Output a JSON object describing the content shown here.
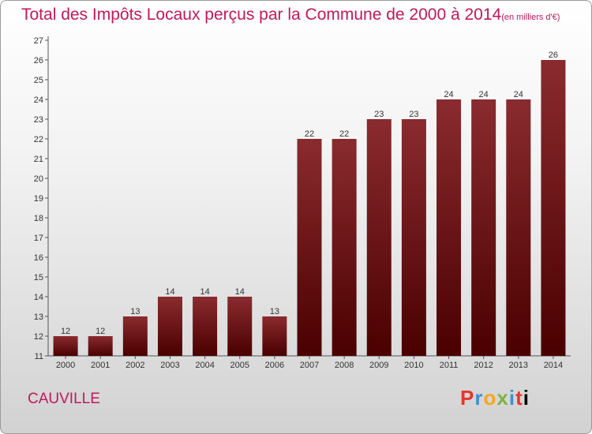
{
  "title": "Total des Impôts Locaux perçus par la Commune de 2000 à 2014",
  "unit_note": "(en milliers d'€)",
  "commune": "CAUVILLE",
  "logo": [
    "P",
    "r",
    "o",
    "x",
    "i",
    "t",
    "i"
  ],
  "colors": {
    "bar_top": "#8a2b2f",
    "bar_bottom": "#4a0000",
    "title": "#c2185b"
  },
  "chart_data": {
    "type": "bar",
    "categories": [
      "2000",
      "2001",
      "2002",
      "2003",
      "2004",
      "2005",
      "2006",
      "2007",
      "2008",
      "2009",
      "2010",
      "2011",
      "2012",
      "2013",
      "2014"
    ],
    "values": [
      12,
      12,
      13,
      14,
      14,
      14,
      13,
      22,
      22,
      23,
      23,
      24,
      24,
      24,
      26
    ],
    "ylim": [
      11,
      27
    ],
    "yticks": [
      11,
      12,
      13,
      14,
      15,
      16,
      17,
      18,
      19,
      20,
      21,
      22,
      23,
      24,
      25,
      26,
      27
    ],
    "grid": false,
    "data_labels": true
  }
}
